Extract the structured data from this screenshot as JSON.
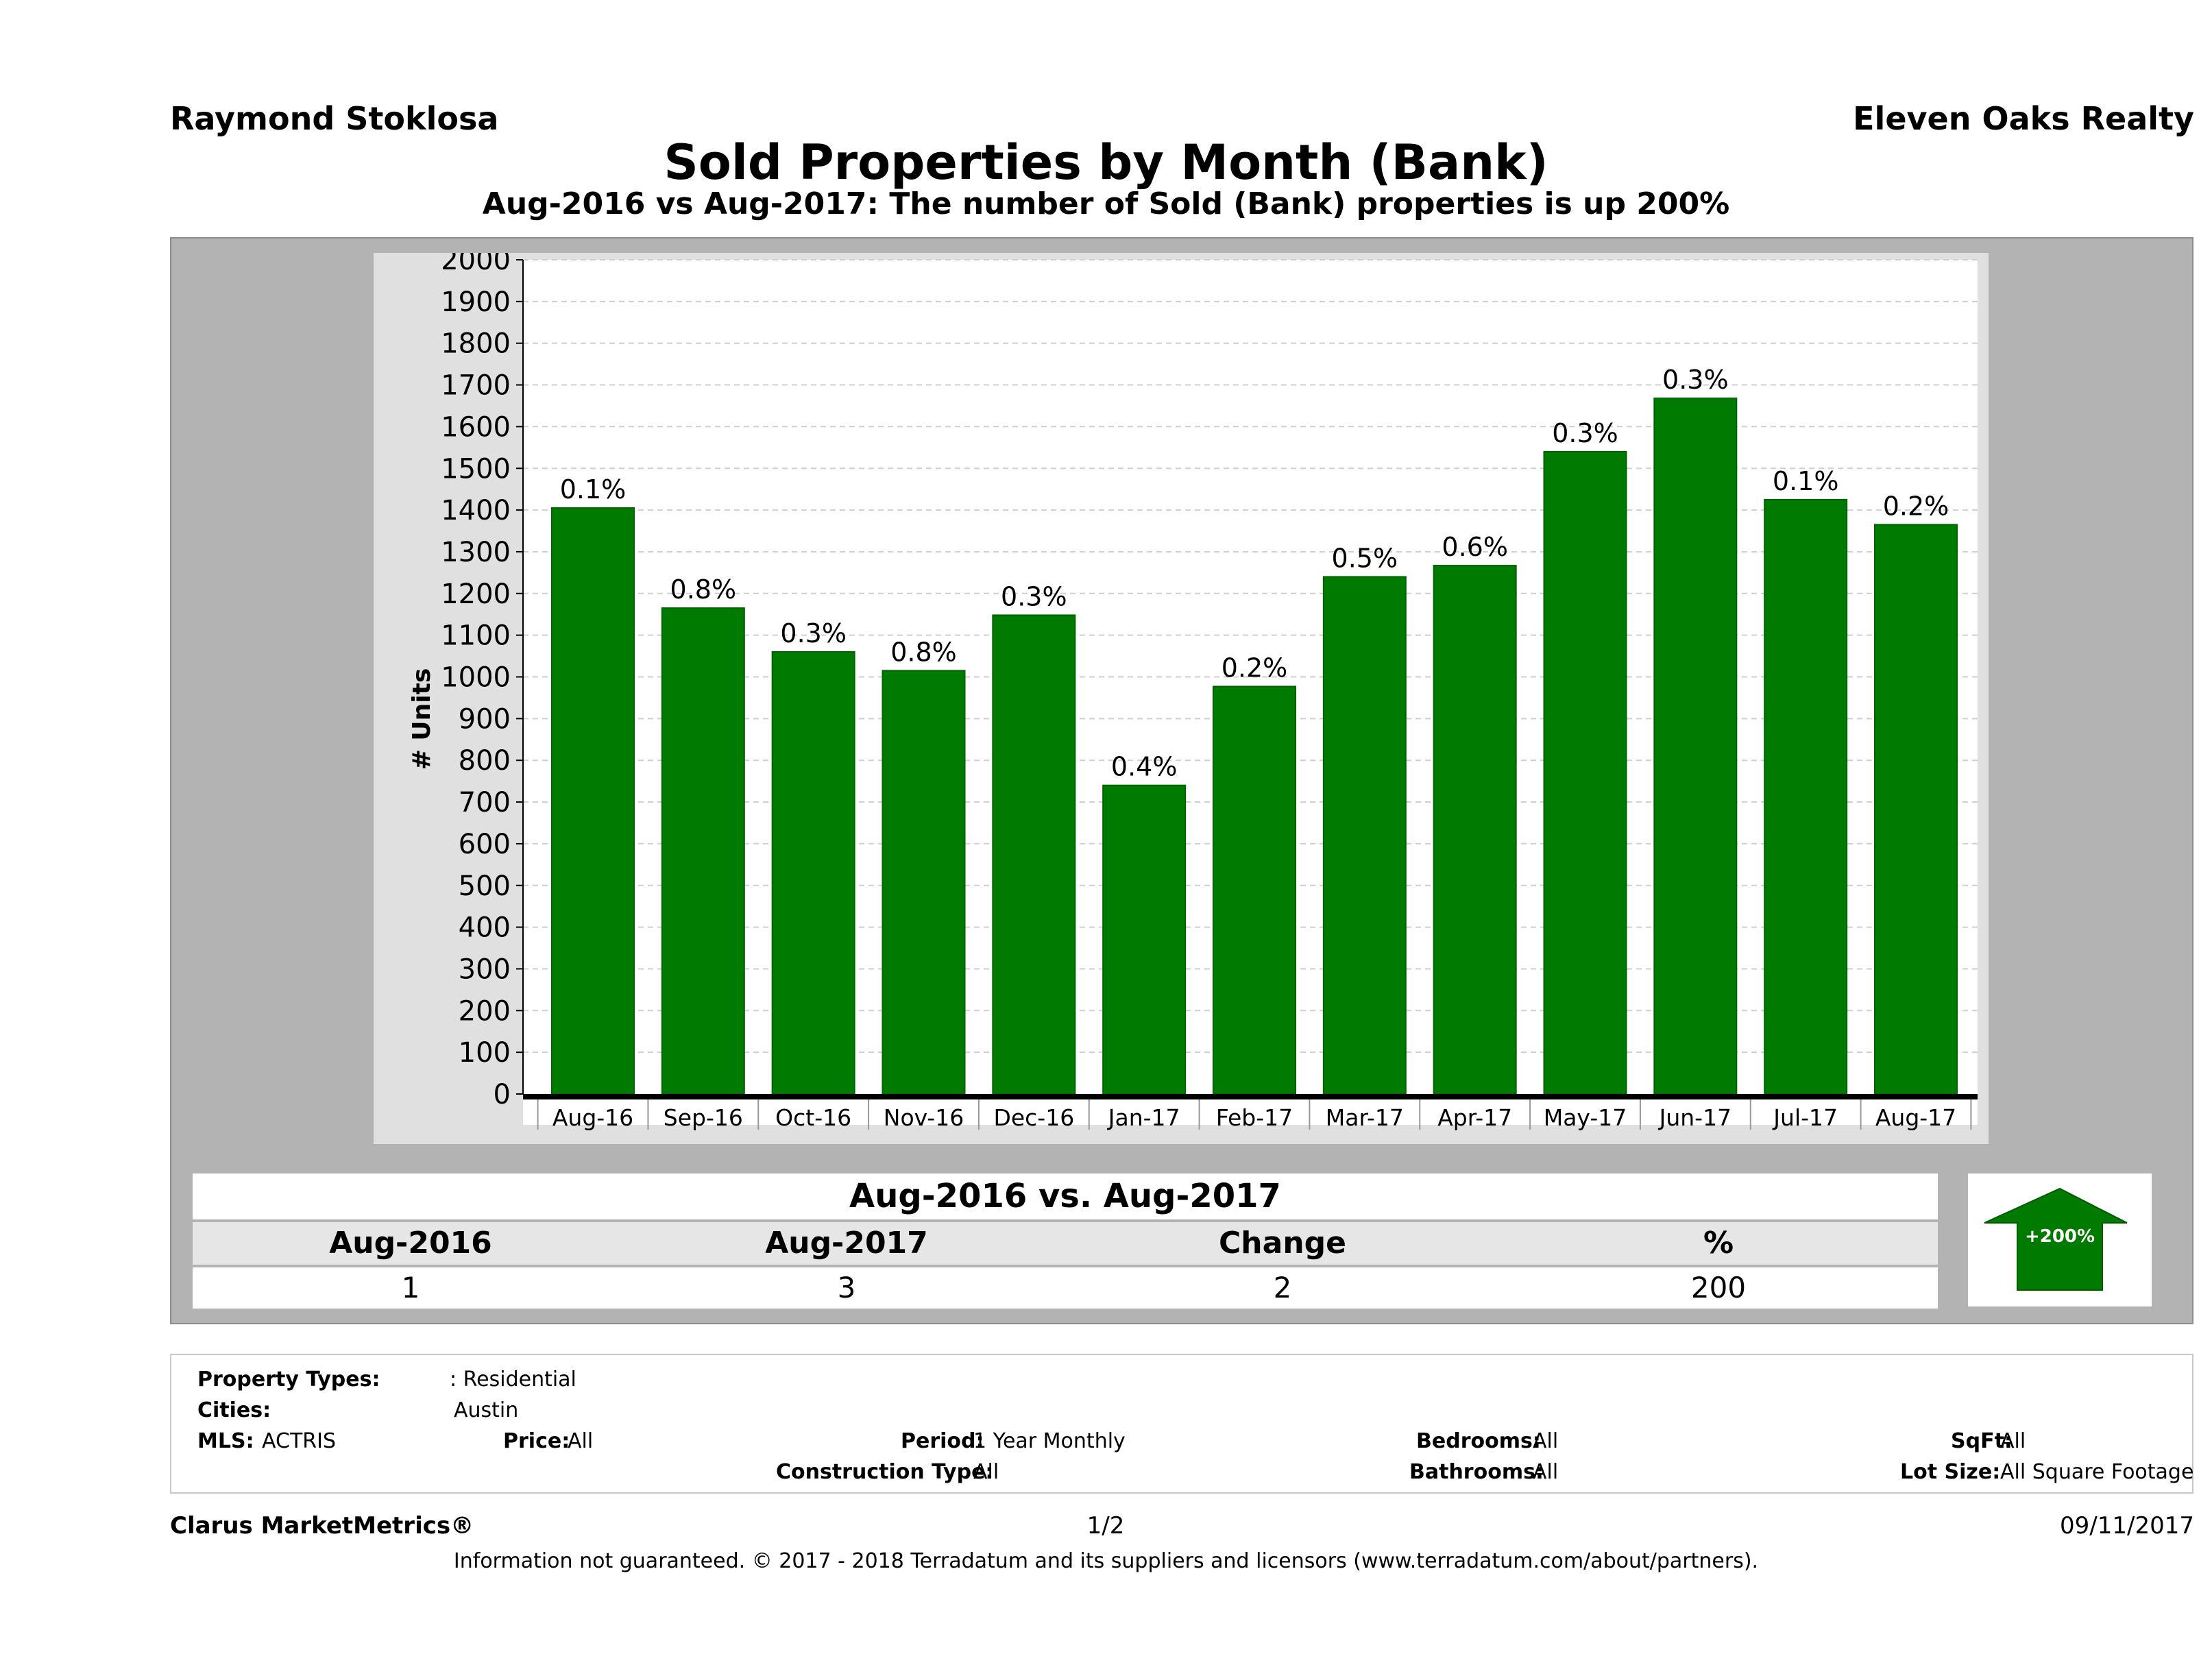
{
  "header": {
    "agent_name": "Raymond Stoklosa",
    "brokerage": "Eleven Oaks Realty",
    "title": "Sold Properties by Month (Bank)",
    "subtitle": "Aug-2016 vs Aug-2017: The number of Sold (Bank)  properties is up 200%"
  },
  "chart_data": {
    "type": "bar",
    "title": "Sold Properties by Month (Bank)",
    "ylabel": "# Units",
    "xlabel": "",
    "ylim": [
      0,
      2000
    ],
    "ytick_step": 100,
    "grid": true,
    "bar_color": "#007a00",
    "categories": [
      "Aug-16",
      "Sep-16",
      "Oct-16",
      "Nov-16",
      "Dec-16",
      "Jan-17",
      "Feb-17",
      "Mar-17",
      "Apr-17",
      "May-17",
      "Jun-17",
      "Jul-17",
      "Aug-17"
    ],
    "values": [
      1405,
      1165,
      1060,
      1015,
      1148,
      740,
      977,
      1240,
      1267,
      1540,
      1668,
      1425,
      1365
    ],
    "data_labels": [
      "0.1%",
      "0.8%",
      "0.3%",
      "0.8%",
      "0.3%",
      "0.4%",
      "0.2%",
      "0.5%",
      "0.6%",
      "0.3%",
      "0.3%",
      "0.1%",
      "0.2%"
    ]
  },
  "comparison": {
    "title": "Aug-2016 vs. Aug-2017",
    "headers": [
      "Aug-2016",
      "Aug-2017",
      "Change",
      "%"
    ],
    "values": [
      "1",
      "3",
      "2",
      "200"
    ],
    "badge": "+200%",
    "badge_color": "#007a00"
  },
  "criteria": {
    "property_types_label": "Property Types:",
    "property_types_value": ": Residential",
    "cities_label": "Cities:",
    "cities_value": "Austin",
    "mls_label": "MLS:",
    "mls_value": "ACTRIS",
    "price_label": "Price:",
    "price_value": "All",
    "period_label": "Period:",
    "period_value": "1 Year Monthly",
    "construction_label": "Construction Type:",
    "construction_value": "All",
    "bedrooms_label": "Bedrooms:",
    "bedrooms_value": "All",
    "bathrooms_label": "Bathrooms:",
    "bathrooms_value": "All",
    "sqft_label": "SqFt:",
    "sqft_value": "All",
    "lotsize_label": "Lot Size:",
    "lotsize_value": "All Square Footage"
  },
  "footer": {
    "product": "Clarus MarketMetrics®",
    "page": "1/2",
    "date": "09/11/2017",
    "disclaimer": "Information not guaranteed. © 2017 - 2018 Terradatum and its suppliers and licensors (www.terradatum.com/about/partners)."
  }
}
